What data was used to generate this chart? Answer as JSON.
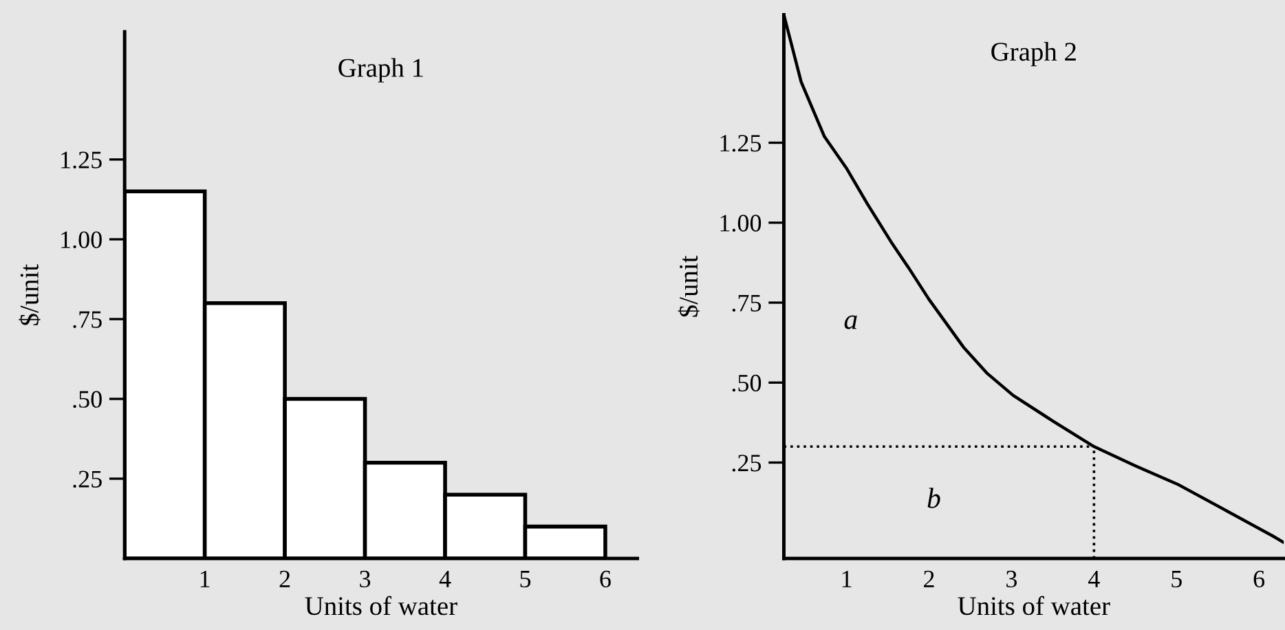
{
  "chart_data": [
    {
      "type": "histogram",
      "title": "Graph 1",
      "xlabel": "Units of water",
      "ylabel": "$/unit",
      "color": "#ffffff",
      "bins": [
        0,
        1,
        2,
        3,
        4,
        5,
        6
      ],
      "values": [
        1.15,
        0.8,
        0.5,
        0.3,
        0.2,
        0.1
      ],
      "xlim": [
        0,
        6.4
      ],
      "ylim": [
        0,
        1.65
      ],
      "xticks": [
        1,
        2,
        3,
        4,
        5,
        6
      ],
      "yticks": [
        {
          "value": 0.25,
          "label": ".25"
        },
        {
          "value": 0.5,
          "label": ".50"
        },
        {
          "value": 0.75,
          "label": ".75"
        },
        {
          "value": 1.0,
          "label": "1.00"
        },
        {
          "value": 1.25,
          "label": "1.25"
        }
      ],
      "grid": false,
      "legend": false
    },
    {
      "type": "line",
      "title": "Graph 2",
      "xlabel": "Units of water",
      "ylabel": "$/unit",
      "color": "#000000",
      "x": [
        0.24,
        0.45,
        0.73,
        1.0,
        1.25,
        1.54,
        1.75,
        2.0,
        2.42,
        2.7,
        3.02,
        3.5,
        4.0,
        4.5,
        5.03,
        5.6,
        6.17,
        6.3
      ],
      "values": [
        1.65,
        1.44,
        1.27,
        1.17,
        1.06,
        0.94,
        0.86,
        0.76,
        0.61,
        0.53,
        0.46,
        0.38,
        0.3,
        0.24,
        0.18,
        0.1,
        0.02,
        0.0
      ],
      "xlim": [
        0.24,
        6.3
      ],
      "ylim": [
        -0.05,
        1.65
      ],
      "xticks": [
        1,
        2,
        3,
        4,
        5,
        6
      ],
      "yticks": [
        {
          "value": 0.25,
          "label": ".25"
        },
        {
          "value": 0.5,
          "label": ".50"
        },
        {
          "value": 0.75,
          "label": ".75"
        },
        {
          "value": 1.0,
          "label": "1.00"
        },
        {
          "value": 1.25,
          "label": "1.25"
        }
      ],
      "ref_lines": [
        {
          "axis": "y",
          "value": 0.3,
          "line_style": "dotted"
        },
        {
          "axis": "x",
          "value": 4,
          "line_style": "dotted"
        }
      ],
      "annotations": [
        "a",
        "b"
      ],
      "grid": false,
      "legend": false,
      "marker": "none",
      "line_style": "solid"
    }
  ]
}
